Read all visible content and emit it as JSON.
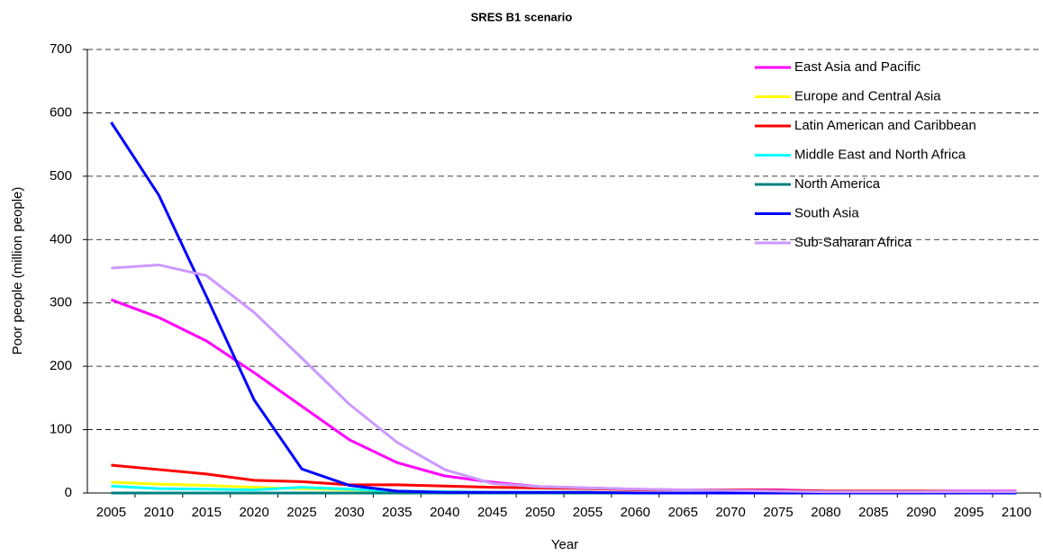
{
  "chart_data": {
    "type": "line",
    "title": "SRES B1 scenario",
    "x_label": "Year",
    "y_label": "Poor people (million people)",
    "categories": [
      "2005",
      "2010",
      "2015",
      "2020",
      "2025",
      "2030",
      "2035",
      "2040",
      "2045",
      "2050",
      "2055",
      "2060",
      "2065",
      "2070",
      "2075",
      "2080",
      "2085",
      "2090",
      "2095",
      "2100"
    ],
    "ylim": [
      0,
      700
    ],
    "yticks": [
      0,
      100,
      200,
      300,
      400,
      500,
      600,
      700
    ],
    "grid": true,
    "legend": "upper right",
    "series": [
      {
        "name": "East Asia and Pacific",
        "color": "#ff00ff",
        "values": [
          305,
          277,
          240,
          190,
          137,
          84,
          48,
          27,
          17,
          10,
          8,
          6,
          5,
          5,
          5,
          3,
          3,
          3,
          3,
          3
        ]
      },
      {
        "name": "Europe and Central Asia",
        "color": "#ffff00",
        "values": [
          17,
          14,
          12,
          9,
          7,
          5,
          3,
          2,
          1,
          1,
          1,
          0,
          0,
          0,
          0,
          0,
          0,
          0,
          0,
          0
        ]
      },
      {
        "name": "Latin American and Caribbean",
        "color": "#ff0000",
        "values": [
          44,
          37,
          30,
          20,
          18,
          13,
          13,
          11,
          9,
          8,
          7,
          5,
          5,
          5,
          4,
          3,
          3,
          3,
          2,
          2
        ]
      },
      {
        "name": "Middle East and North Africa",
        "color": "#00ffff",
        "values": [
          11,
          7,
          6,
          5,
          9,
          6,
          3,
          2,
          1,
          1,
          1,
          0,
          0,
          0,
          0,
          0,
          0,
          0,
          0,
          0
        ]
      },
      {
        "name": "North America",
        "color": "#008080",
        "values": [
          0,
          0,
          0,
          0,
          0,
          0,
          0,
          0,
          0,
          0,
          0,
          0,
          0,
          0,
          0,
          0,
          0,
          0,
          0,
          0
        ]
      },
      {
        "name": "South Asia",
        "color": "#0000ff",
        "values": [
          585,
          470,
          310,
          147,
          38,
          12,
          3,
          1,
          1,
          1,
          1,
          0,
          0,
          0,
          0,
          0,
          0,
          0,
          0,
          0
        ]
      },
      {
        "name": "Sub-Saharan Africa",
        "color": "#cc99ff",
        "values": [
          355,
          360,
          343,
          285,
          213,
          140,
          80,
          37,
          15,
          10,
          8,
          6,
          5,
          4,
          3,
          2,
          2,
          2,
          2,
          2
        ]
      }
    ]
  }
}
